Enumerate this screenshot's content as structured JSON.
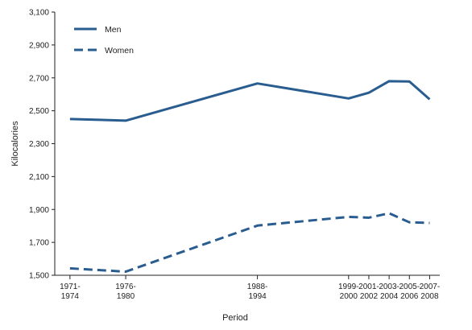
{
  "chart_data": {
    "type": "line",
    "title": "",
    "xlabel": "Period",
    "ylabel": "Kilocalories",
    "x_positions_years": [
      1972.5,
      1978,
      1991,
      2000,
      2002,
      2004,
      2006,
      2008
    ],
    "categories": [
      [
        "1971-",
        "1974"
      ],
      [
        "1976-",
        "1980"
      ],
      [
        "1988-",
        "1994"
      ],
      [
        "1999-",
        "2000"
      ],
      [
        "2001-",
        "2002"
      ],
      [
        "2003-",
        "2004"
      ],
      [
        "2005-",
        "2006"
      ],
      [
        "2007-",
        "2008"
      ]
    ],
    "ylim": [
      1500,
      3100
    ],
    "yticks": [
      1500,
      1700,
      1900,
      2100,
      2300,
      2500,
      2700,
      2900,
      3100
    ],
    "ytick_labels": [
      "1,500",
      "1,700",
      "1,900",
      "2,100",
      "2,300",
      "2,500",
      "2,700",
      "2,900",
      "3,100"
    ],
    "grid": false,
    "legend_position": "top-left",
    "series": [
      {
        "name": "Men",
        "style": "solid",
        "color": "#2a5d8f",
        "values": [
          2450,
          2440,
          2666,
          2575,
          2610,
          2680,
          2678,
          2570
        ]
      },
      {
        "name": "Women",
        "style": "dashed",
        "color": "#2a5d8f",
        "values": [
          1542,
          1522,
          1802,
          1855,
          1850,
          1877,
          1822,
          1818
        ]
      }
    ]
  }
}
